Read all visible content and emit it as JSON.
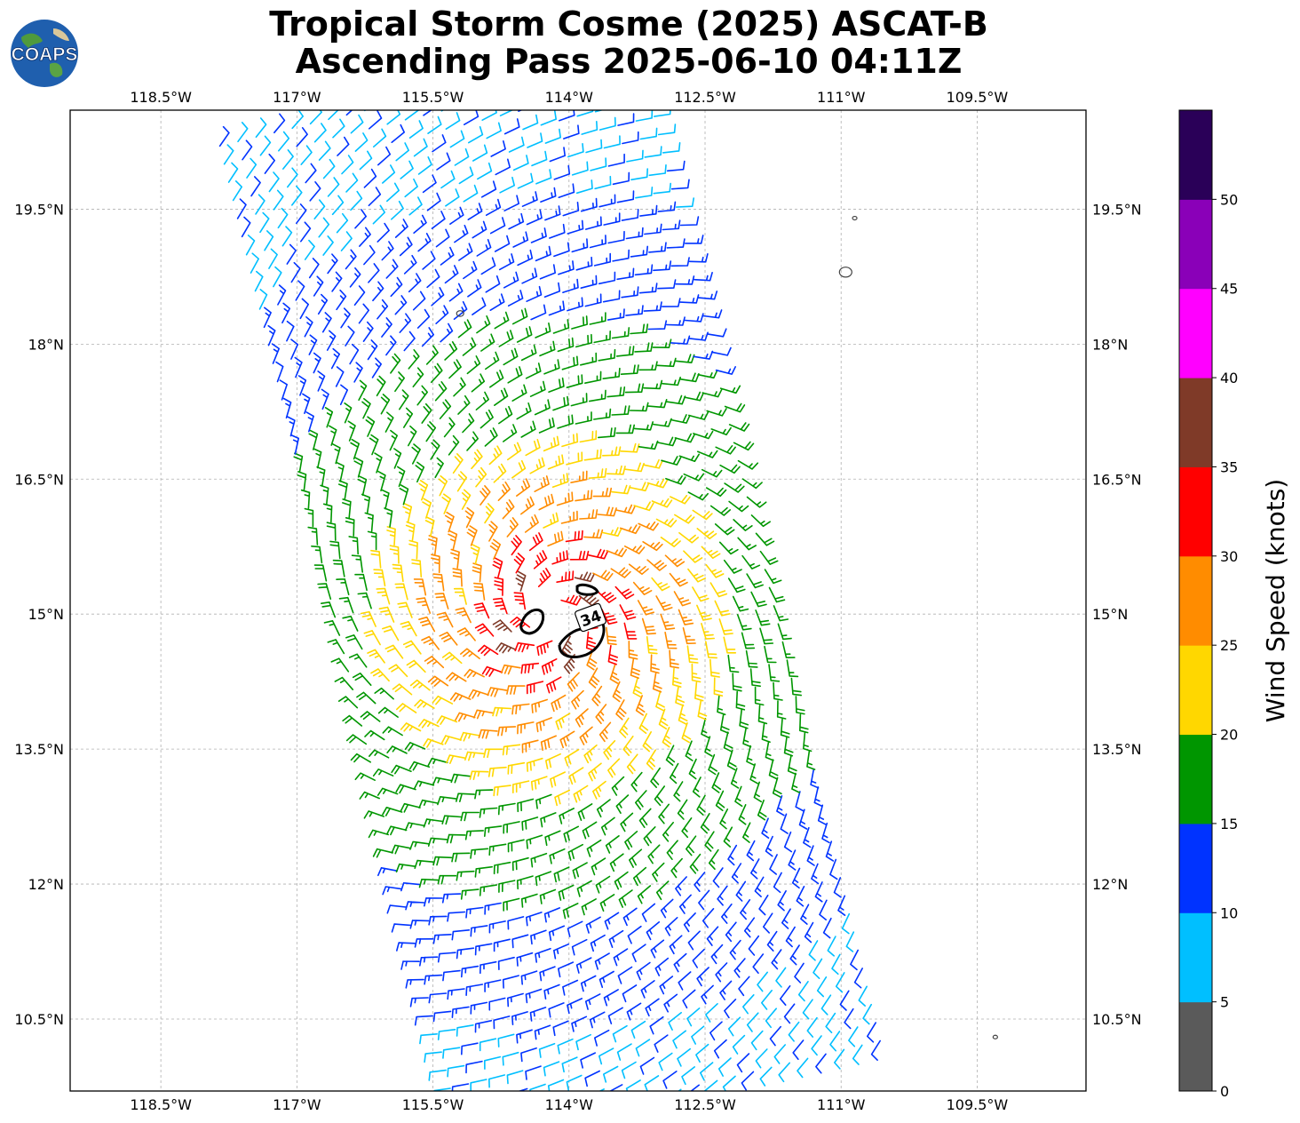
{
  "title": {
    "line1": "Tropical Storm Cosme (2025) ASCAT-B",
    "line2": "Ascending Pass 2025-06-10 04:11Z"
  },
  "logo": {
    "text": "COAPS",
    "icon": "globe-icon"
  },
  "map": {
    "lon_range": [
      -119.5,
      -108.3
    ],
    "lat_range": [
      9.7,
      20.6
    ],
    "lon_ticks": [
      {
        "value": -118.5,
        "label": "118.5°W"
      },
      {
        "value": -117.0,
        "label": "117°W"
      },
      {
        "value": -115.5,
        "label": "115.5°W"
      },
      {
        "value": -114.0,
        "label": "114°W"
      },
      {
        "value": -112.5,
        "label": "112.5°W"
      },
      {
        "value": -111.0,
        "label": "111°W"
      },
      {
        "value": -109.5,
        "label": "109.5°W"
      }
    ],
    "lat_ticks": [
      {
        "value": 19.5,
        "label": "19.5°N"
      },
      {
        "value": 18.0,
        "label": "18°N"
      },
      {
        "value": 16.5,
        "label": "16.5°N"
      },
      {
        "value": 15.0,
        "label": "15°N"
      },
      {
        "value": 13.5,
        "label": "13.5°N"
      },
      {
        "value": 12.0,
        "label": "12°N"
      },
      {
        "value": 10.5,
        "label": "10.5°N"
      }
    ],
    "grid": true,
    "storm_center": {
      "lon": -114.2,
      "lat": 15.0
    },
    "contour_label": "34",
    "islands": [
      {
        "lon": -110.95,
        "lat": 18.8
      },
      {
        "lon": -110.85,
        "lat": 19.4
      },
      {
        "lon": -115.2,
        "lat": 18.34
      },
      {
        "lon": -109.3,
        "lat": 10.3
      }
    ]
  },
  "colorbar": {
    "label": "Wind Speed (knots)",
    "bins": [
      {
        "from": 0,
        "to": 5,
        "color": "#5a5a5a"
      },
      {
        "from": 5,
        "to": 10,
        "color": "#00bfff"
      },
      {
        "from": 10,
        "to": 15,
        "color": "#0033ff"
      },
      {
        "from": 15,
        "to": 20,
        "color": "#009600"
      },
      {
        "from": 20,
        "to": 25,
        "color": "#ffd700"
      },
      {
        "from": 25,
        "to": 30,
        "color": "#ff8c00"
      },
      {
        "from": 30,
        "to": 35,
        "color": "#ff0000"
      },
      {
        "from": 35,
        "to": 40,
        "color": "#7f3a28"
      },
      {
        "from": 40,
        "to": 45,
        "color": "#ff00ff"
      },
      {
        "from": 45,
        "to": 50,
        "color": "#8a00b8"
      },
      {
        "from": 50,
        "to": 55,
        "color": "#2a0058"
      }
    ],
    "ticks": [
      "0",
      "5",
      "10",
      "15",
      "20",
      "25",
      "30",
      "35",
      "40",
      "45",
      "50"
    ]
  }
}
